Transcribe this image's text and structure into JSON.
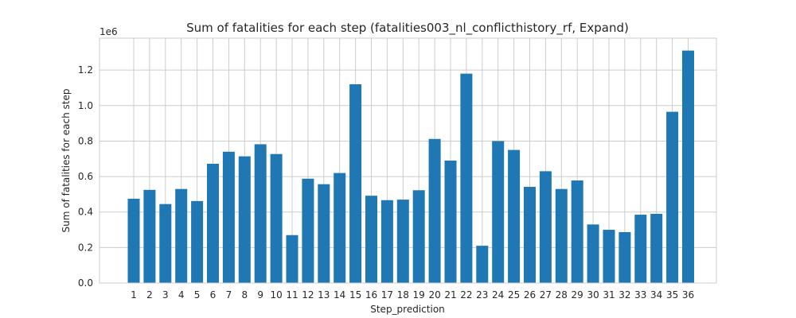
{
  "chart_data": {
    "type": "bar",
    "title": "Sum of fatalities for each step (fatalities003_nl_conflicthistory_rf, Expand)",
    "xlabel": "Step_prediction",
    "ylabel": "Sum of fatalities for each step",
    "y_offset_text": "1e6",
    "ylim": [
      0,
      1.38
    ],
    "y_ticks": [
      0.0,
      0.2,
      0.4,
      0.6,
      0.8,
      1.0,
      1.2
    ],
    "y_tick_labels": [
      "0.0",
      "0.2",
      "0.4",
      "0.6",
      "0.8",
      "1.0",
      "1.2"
    ],
    "grid": true,
    "color": "#1f77b4",
    "categories": [
      "1",
      "2",
      "3",
      "4",
      "5",
      "6",
      "7",
      "8",
      "9",
      "10",
      "11",
      "12",
      "13",
      "14",
      "15",
      "16",
      "17",
      "18",
      "19",
      "20",
      "21",
      "22",
      "23",
      "24",
      "25",
      "26",
      "27",
      "28",
      "29",
      "30",
      "31",
      "32",
      "33",
      "34",
      "35",
      "36"
    ],
    "values": [
      0.475,
      0.525,
      0.445,
      0.53,
      0.462,
      0.672,
      0.74,
      0.714,
      0.782,
      0.727,
      0.27,
      0.588,
      0.557,
      0.62,
      1.12,
      0.492,
      0.467,
      0.47,
      0.523,
      0.812,
      0.69,
      1.18,
      0.21,
      0.8,
      0.75,
      0.542,
      0.63,
      0.53,
      0.578,
      0.33,
      0.3,
      0.287,
      0.385,
      0.39,
      0.965,
      1.31
    ]
  }
}
